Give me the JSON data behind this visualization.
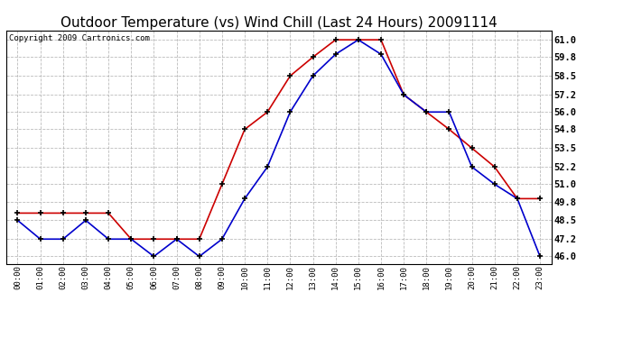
{
  "title": "Outdoor Temperature (vs) Wind Chill (Last 24 Hours) 20091114",
  "copyright": "Copyright 2009 Cartronics.com",
  "x_labels": [
    "00:00",
    "01:00",
    "02:00",
    "03:00",
    "04:00",
    "05:00",
    "06:00",
    "07:00",
    "08:00",
    "09:00",
    "10:00",
    "11:00",
    "12:00",
    "13:00",
    "14:00",
    "15:00",
    "16:00",
    "17:00",
    "18:00",
    "19:00",
    "20:00",
    "21:00",
    "22:00",
    "23:00"
  ],
  "temp": [
    49.0,
    49.0,
    49.0,
    49.0,
    49.0,
    47.2,
    47.2,
    47.2,
    47.2,
    51.0,
    54.8,
    56.0,
    58.5,
    59.8,
    61.0,
    61.0,
    61.0,
    57.2,
    56.0,
    54.8,
    53.5,
    52.2,
    50.0,
    50.0
  ],
  "windchill": [
    48.5,
    47.2,
    47.2,
    48.5,
    47.2,
    47.2,
    46.0,
    47.2,
    46.0,
    47.2,
    50.0,
    52.2,
    56.0,
    58.5,
    60.0,
    61.0,
    60.0,
    57.2,
    56.0,
    56.0,
    52.2,
    51.0,
    50.0,
    46.0
  ],
  "temp_color": "#cc0000",
  "windchill_color": "#0000cc",
  "ylim": [
    45.5,
    61.65
  ],
  "yticks": [
    46.0,
    47.2,
    48.5,
    49.8,
    51.0,
    52.2,
    53.5,
    54.8,
    56.0,
    57.2,
    58.5,
    59.8,
    61.0
  ],
  "bg_color": "#ffffff",
  "plot_bg_color": "#ffffff",
  "grid_color": "#aaaaaa",
  "title_fontsize": 11,
  "copyright_fontsize": 6.5,
  "marker": "+",
  "marker_size": 5,
  "marker_edge_width": 1.2,
  "line_width": 1.2
}
